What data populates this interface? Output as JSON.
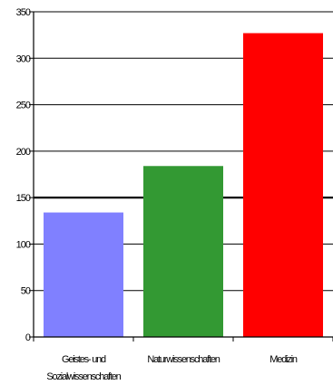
{
  "chart_data": {
    "type": "bar",
    "categories": [
      [
        "Geistes- und",
        "Sozialwissenschaften"
      ],
      [
        "Naturwissenschaften"
      ],
      [
        "Medizin"
      ]
    ],
    "values": [
      13.4,
      18.4,
      32.7
    ],
    "colors": [
      "#8080ff",
      "#339933",
      "#ff0000"
    ],
    "ylim": [
      0,
      35
    ],
    "yticks": [
      0,
      5,
      10,
      15,
      20,
      25,
      30,
      35
    ],
    "ytick_labels": [
      "0",
      "50",
      "100",
      "150",
      "200",
      "250",
      "300",
      "350"
    ],
    "reference_line": 15,
    "title": "",
    "xlabel": "",
    "ylabel": "",
    "grid": true
  }
}
